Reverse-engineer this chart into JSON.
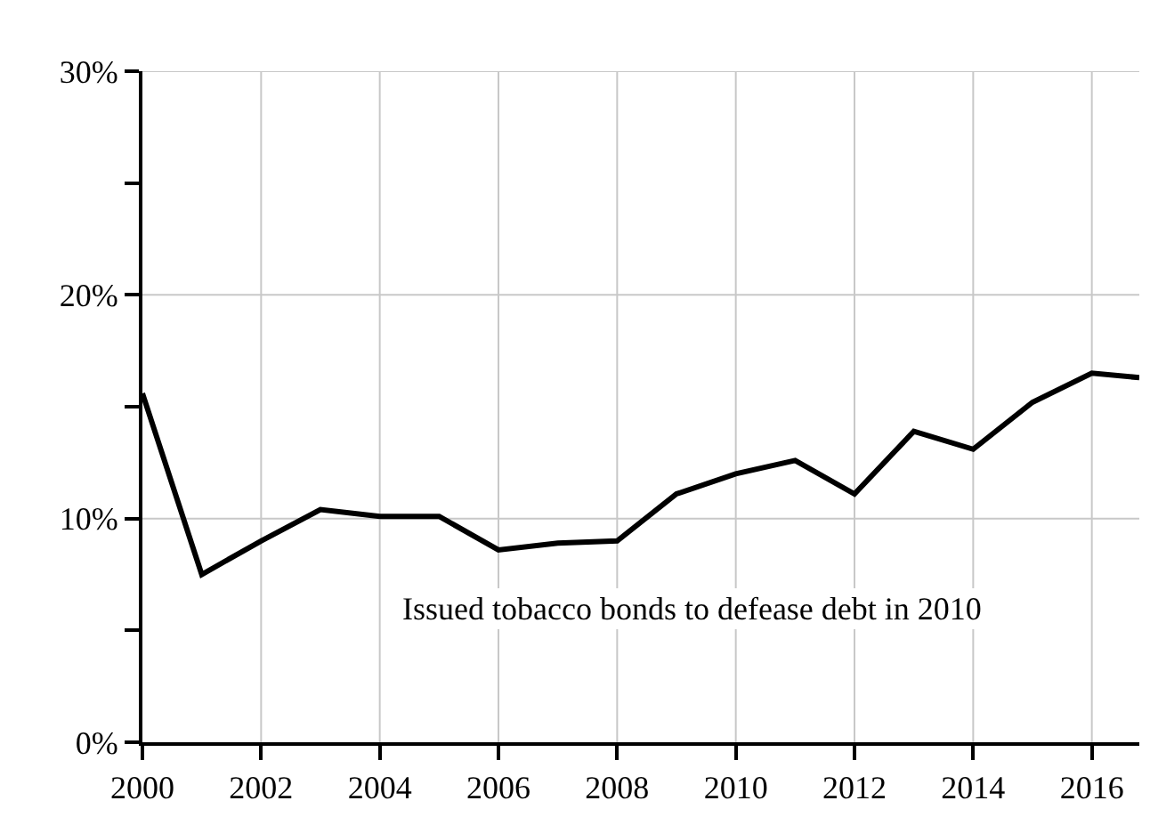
{
  "chart_data": {
    "type": "line",
    "x": [
      2000,
      2001,
      2002,
      2003,
      2004,
      2005,
      2006,
      2007,
      2008,
      2009,
      2010,
      2011,
      2012,
      2013,
      2014,
      2015,
      2016,
      2016.8
    ],
    "series": [
      {
        "color": "#000000",
        "values": [
          15.6,
          7.5,
          9.0,
          10.4,
          10.1,
          10.1,
          8.6,
          8.9,
          9.0,
          11.1,
          12.0,
          12.6,
          11.1,
          13.9,
          13.1,
          15.2,
          16.5,
          16.3
        ]
      }
    ],
    "xlim": [
      2000,
      2016.8
    ],
    "xticks": [
      2000,
      2002,
      2004,
      2006,
      2008,
      2010,
      2012,
      2014,
      2016
    ],
    "ylim": [
      0,
      30
    ],
    "yticks": [
      {
        "value": 0,
        "label": "0%"
      },
      {
        "value": 5,
        "label": null
      },
      {
        "value": 10,
        "label": "10%"
      },
      {
        "value": 15,
        "label": null
      },
      {
        "value": 20,
        "label": "20%"
      },
      {
        "value": 25,
        "label": null
      },
      {
        "value": 30,
        "label": "30%"
      }
    ],
    "grid": true,
    "marker": "none",
    "line_style": "solid",
    "annotations": [
      "Issued tobacco bonds to defease debt in 2010"
    ]
  }
}
